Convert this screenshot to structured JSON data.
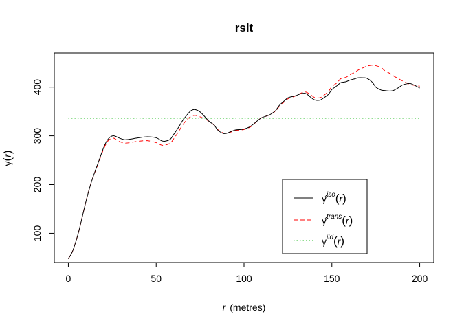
{
  "chart_data": {
    "type": "line",
    "title": "rslt",
    "xlabel_var": "r",
    "xlabel_unit": "(metres)",
    "ylabel_fn": "γ",
    "ylabel_var": "r",
    "xlim": [
      -8,
      208
    ],
    "ylim": [
      40,
      470
    ],
    "xticks": [
      0,
      50,
      100,
      150,
      200
    ],
    "yticks": [
      100,
      200,
      300,
      400
    ],
    "grid": false,
    "legend_position": "bottom-right",
    "x": [
      0,
      2,
      4,
      6,
      8,
      10,
      12,
      14,
      16,
      18,
      20,
      22,
      24,
      26,
      28,
      30,
      32,
      35,
      40,
      45,
      50,
      53,
      55,
      58,
      60,
      63,
      65,
      68,
      70,
      72,
      75,
      78,
      80,
      83,
      85,
      88,
      90,
      92,
      95,
      98,
      100,
      103,
      105,
      108,
      110,
      113,
      115,
      118,
      120,
      123,
      125,
      128,
      130,
      132,
      135,
      138,
      140,
      143,
      145,
      148,
      150,
      153,
      155,
      158,
      160,
      163,
      165,
      168,
      170,
      173,
      175,
      178,
      180,
      183,
      185,
      188,
      190,
      193,
      195,
      198,
      200
    ],
    "series": [
      {
        "legend_fn": "γ̂",
        "legend_sup": "iso",
        "legend_var": "r",
        "color": "#000000",
        "dash": "",
        "values": [
          48,
          60,
          80,
          105,
          135,
          165,
          192,
          215,
          235,
          255,
          275,
          290,
          298,
          300,
          297,
          294,
          292,
          293,
          296,
          298,
          296,
          290,
          289,
          293,
          303,
          319,
          331,
          345,
          352,
          354,
          349,
          338,
          330,
          322,
          312,
          305,
          305,
          308,
          312,
          313,
          314,
          318,
          323,
          332,
          337,
          341,
          344,
          352,
          362,
          372,
          378,
          381,
          383,
          386,
          387,
          379,
          374,
          373,
          377,
          385,
          395,
          403,
          409,
          411,
          414,
          417,
          419,
          419,
          418,
          410,
          400,
          394,
          393,
          392,
          393,
          399,
          404,
          407,
          407,
          402,
          398
        ]
      },
      {
        "legend_fn": "γ̂",
        "legend_sup": "trans",
        "legend_var": "r",
        "color": "#FF0000",
        "dash": "6,4",
        "values": [
          48,
          60,
          80,
          105,
          135,
          165,
          192,
          215,
          233,
          253,
          272,
          287,
          294,
          295,
          290,
          287,
          285,
          286,
          289,
          290,
          286,
          281,
          281,
          285,
          294,
          310,
          322,
          335,
          340,
          342,
          339,
          334,
          330,
          322,
          313,
          306,
          305,
          307,
          311,
          312,
          313,
          317,
          322,
          332,
          337,
          341,
          344,
          351,
          360,
          370,
          376,
          380,
          383,
          387,
          390,
          384,
          379,
          378,
          382,
          391,
          401,
          409,
          417,
          420,
          425,
          430,
          435,
          440,
          443,
          445,
          444,
          440,
          434,
          428,
          423,
          417,
          413,
          408,
          405,
          403,
          402
        ]
      },
      {
        "legend_fn": "γ",
        "legend_sup": "iid",
        "legend_var": "r",
        "color": "#22BB22",
        "dash": "1.5,3",
        "values": [
          336,
          336,
          336,
          336,
          336,
          336,
          336,
          336,
          336,
          336,
          336,
          336,
          336,
          336,
          336,
          336,
          336,
          336,
          336,
          336,
          336,
          336,
          336,
          336,
          336,
          336,
          336,
          336,
          336,
          336,
          336,
          336,
          336,
          336,
          336,
          336,
          336,
          336,
          336,
          336,
          336,
          336,
          336,
          336,
          336,
          336,
          336,
          336,
          336,
          336,
          336,
          336,
          336,
          336,
          336,
          336,
          336,
          336,
          336,
          336,
          336,
          336,
          336,
          336,
          336,
          336,
          336,
          336,
          336,
          336,
          336,
          336,
          336,
          336,
          336,
          336,
          336,
          336,
          336,
          336,
          336
        ]
      }
    ]
  }
}
